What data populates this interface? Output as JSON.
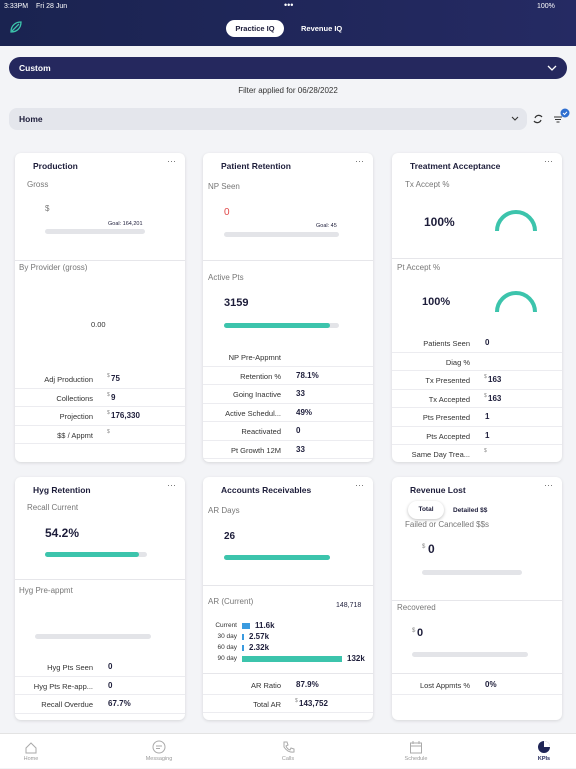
{
  "status_bar": {
    "time": "3:33PM",
    "date": "Fri 28 Jun",
    "battery": "100%"
  },
  "tabs": [
    "Practice IQ",
    "Revenue IQ"
  ],
  "date_range": "Custom",
  "filter_note": "Filter applied for 06/28/2022",
  "location": "Home",
  "cards": [
    {
      "title": "Production",
      "metric": "Gross",
      "currency": "$",
      "goal": "Goal: 164,201",
      "section": "By Provider (gross)",
      "section_value": "0.00",
      "rows": [
        {
          "label": "Adj Production",
          "prefix": "$",
          "value": "75"
        },
        {
          "label": "Collections",
          "prefix": "$",
          "value": "9"
        },
        {
          "label": "Projection",
          "prefix": "$",
          "value": "176,330"
        },
        {
          "label": "$$ / Appmt",
          "prefix": "$"
        }
      ]
    },
    {
      "title": "Patient Retention",
      "metric": "NP Seen",
      "value": "0",
      "goal": "Goal: 45",
      "section": "Active Pts",
      "section_value": "3159",
      "rows": [
        {
          "label": "NP Pre-Appmnt"
        },
        {
          "label": "Retention %",
          "value": "78.1%"
        },
        {
          "label": "Going Inactive",
          "value": "33"
        },
        {
          "label": "Active Schedul...",
          "value": "49%"
        },
        {
          "label": "Reactivated",
          "value": "0"
        },
        {
          "label": "Pt Growth 12M",
          "value": "33"
        }
      ]
    },
    {
      "title": "Treatment Acceptance",
      "metric": "Tx Accept %",
      "value": "100%",
      "section": "Pt Accept %",
      "section_value": "100%",
      "rows": [
        {
          "label": "Patients Seen",
          "value": "0"
        },
        {
          "label": "Diag %"
        },
        {
          "label": "Tx Presented",
          "prefix": "$",
          "value": "163"
        },
        {
          "label": "Tx Accepted",
          "prefix": "$",
          "value": "163"
        },
        {
          "label": "Pts Presented",
          "value": "1"
        },
        {
          "label": "Pts Accepted",
          "value": "1"
        },
        {
          "label": "Same Day Trea...",
          "prefix": "$"
        }
      ]
    },
    {
      "title": "Hyg Retention",
      "metric": "Recall Current",
      "value": "54.2%",
      "section": "Hyg Pre-appmt",
      "rows": [
        {
          "label": "Hyg Pts Seen",
          "value": "0"
        },
        {
          "label": "Hyg Pts Re-app...",
          "value": "0"
        },
        {
          "label": "Recall Overdue",
          "value": "67.7%"
        }
      ]
    },
    {
      "title": "Accounts Receivables",
      "metric": "AR Days",
      "value": "26",
      "section": "AR (Current)",
      "section_value": "148,718",
      "aging": [
        {
          "label": "Current",
          "value": "11.6k"
        },
        {
          "label": "30 day",
          "value": "2.57k"
        },
        {
          "label": "60 day",
          "value": "2.32k"
        },
        {
          "label": "90 day",
          "value": "132k"
        }
      ],
      "rows": [
        {
          "label": "AR Ratio",
          "value": "87.9%"
        },
        {
          "label": "Total AR",
          "prefix": "$",
          "value": "143,752"
        }
      ]
    },
    {
      "title": "Revenue Lost",
      "toggle": [
        "Total",
        "Detailed $$"
      ],
      "metric": "Failed or Cancelled $$s",
      "currency": "$",
      "value": "0",
      "section": "Recovered",
      "section_currency": "$",
      "section_value": "0",
      "rows": [
        {
          "label": "Lost Appmts %",
          "value": "0%"
        }
      ]
    }
  ],
  "nav": [
    "Home",
    "Messaging",
    "Calls",
    "Schedule",
    "KPIs"
  ]
}
